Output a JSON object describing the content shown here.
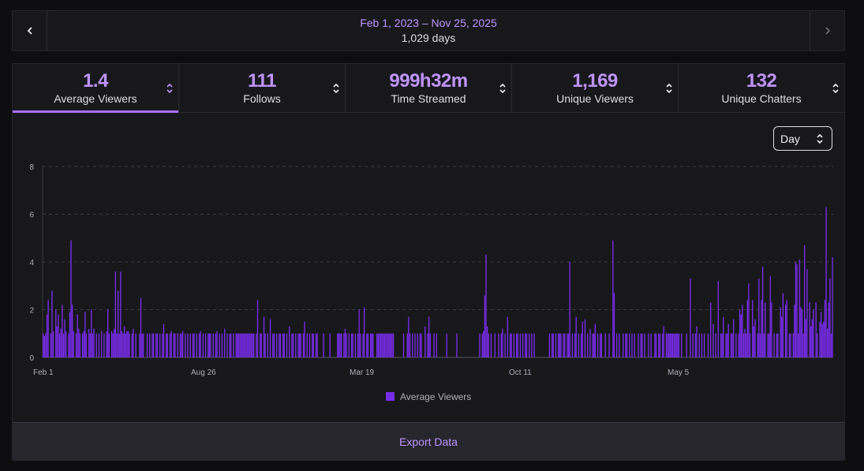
{
  "range": {
    "title": "Feb 1, 2023 – Nov 25, 2025",
    "days": "1,029 days",
    "prev_icon": "chevron-left-icon",
    "next_icon": "chevron-right-icon"
  },
  "tabs": [
    {
      "value": "1.4",
      "label": "Average Viewers",
      "active": true
    },
    {
      "value": "111",
      "label": "Follows",
      "active": false
    },
    {
      "value": "999h32m",
      "label": "Time Streamed",
      "active": false
    },
    {
      "value": "1,169",
      "label": "Unique Viewers",
      "active": false
    },
    {
      "value": "132",
      "label": "Unique Chatters",
      "active": false
    }
  ],
  "interval_select": {
    "value": "Day"
  },
  "export_label": "Export Data",
  "colors": {
    "accent": "#a970ff",
    "bar": "#772ce8",
    "text_accent": "#bf94ff"
  },
  "chart_data": {
    "type": "bar",
    "x_ticks": [
      "Feb 1",
      "Aug 26",
      "Mar 19",
      "Oct 11",
      "May 5"
    ],
    "y_ticks": [
      "0",
      "2",
      "4",
      "6",
      "8"
    ],
    "ylim": [
      0,
      8
    ],
    "grid": true,
    "legend": "bottom",
    "series": [
      {
        "name": "Average Viewers",
        "values": [
          1,
          0.9,
          1,
          1.8,
          2.4,
          0,
          1,
          2.8,
          1.1,
          0,
          2,
          1.3,
          1.8,
          1,
          1.2,
          2.2,
          1,
          1.6,
          1.1,
          0,
          1,
          1.9,
          4.9,
          2.2,
          1.1,
          0,
          1,
          1.8,
          1.2,
          1,
          0,
          1,
          1.1,
          1.9,
          1,
          0,
          1.2,
          1,
          2,
          1,
          1.2,
          0,
          1,
          0,
          1,
          0,
          1.1,
          0,
          1,
          0,
          1.1,
          2,
          1,
          0,
          1.1,
          1,
          1.2,
          3.6,
          1,
          2.8,
          1,
          3.6,
          1.1,
          1,
          1.3,
          1,
          1.1,
          1.1,
          1,
          0,
          1,
          1.2,
          0,
          1,
          0,
          0,
          1,
          2.5,
          1,
          1,
          0,
          0,
          1,
          0,
          1,
          0,
          1,
          1,
          0,
          1,
          1,
          0,
          1,
          0,
          1,
          1.4,
          0,
          1,
          1,
          0,
          1,
          1.1,
          0,
          1,
          1,
          0,
          1,
          0,
          1,
          1,
          1.1,
          0,
          1,
          0,
          1,
          0,
          1,
          0,
          1,
          1,
          0,
          1,
          0,
          1,
          1.1,
          0,
          1,
          0,
          1,
          0,
          1,
          1,
          1,
          0,
          1,
          0,
          1,
          1.1,
          0,
          1,
          0,
          1,
          0,
          1.2,
          0,
          1,
          0,
          1,
          1,
          0,
          1,
          0,
          1,
          1,
          1,
          1,
          1,
          1,
          1,
          1,
          1,
          1,
          1,
          1,
          1,
          1,
          1,
          0,
          1,
          2.4,
          0,
          1,
          1,
          0,
          1.7,
          1,
          0,
          1,
          0,
          1.6,
          0,
          1,
          1,
          0,
          1,
          0,
          1,
          1,
          0,
          1,
          1,
          0,
          1,
          0,
          1.3,
          0,
          1,
          1,
          0,
          1,
          0,
          1,
          1,
          1,
          0,
          1,
          1.5,
          0,
          1,
          0,
          1,
          0,
          1,
          1,
          0,
          1,
          1,
          0,
          0,
          0,
          0,
          1,
          0,
          0,
          0,
          0,
          1,
          0,
          0,
          0,
          0,
          0,
          1,
          1,
          1,
          1,
          0,
          1,
          1.2,
          1,
          0,
          1,
          0,
          1,
          1,
          0,
          1,
          0,
          1,
          2,
          1,
          0,
          1,
          2.1,
          0,
          1,
          1,
          0,
          1,
          1,
          1,
          0,
          0,
          1,
          1,
          1,
          1,
          1,
          1,
          1,
          1,
          1,
          1,
          1,
          1,
          1,
          1,
          0,
          0,
          0,
          0,
          0,
          0,
          0,
          1,
          0,
          0,
          1,
          1.7,
          1,
          0,
          1,
          0,
          1,
          0,
          1,
          0,
          1,
          1,
          0,
          0,
          1.3,
          0,
          1,
          1.7,
          1,
          0,
          0,
          1,
          0,
          1,
          0,
          0,
          0,
          0,
          0,
          0,
          0,
          1,
          0,
          0,
          0,
          0,
          0,
          0,
          0,
          1,
          0,
          0,
          0,
          0,
          0,
          0,
          0,
          0,
          0,
          0,
          0,
          0,
          0,
          0,
          0,
          0,
          0,
          1,
          0,
          1,
          1.1,
          2.6,
          4.3,
          1.3,
          1,
          0,
          1,
          0,
          0,
          1,
          0,
          0,
          1,
          0,
          1,
          1.2,
          0,
          1,
          0,
          1.7,
          0,
          1,
          1,
          0,
          1,
          0,
          1,
          1,
          0,
          1,
          0,
          1,
          0,
          1,
          1,
          0,
          1,
          0,
          1,
          0,
          1,
          0,
          0,
          0,
          0,
          0,
          0,
          0,
          0,
          0,
          0,
          0,
          1,
          0,
          1,
          1,
          0,
          1,
          0,
          1,
          1,
          1,
          0,
          1,
          1,
          0,
          1,
          1,
          4,
          0,
          1,
          0,
          1,
          1.7,
          0,
          1,
          0,
          1,
          1.5,
          0,
          1.6,
          0,
          1,
          0,
          1.2,
          0,
          1,
          1,
          1.4,
          0,
          1,
          0,
          1,
          1,
          0,
          0,
          1,
          0,
          0,
          1,
          0,
          0,
          4.9,
          2.7,
          0,
          1,
          0,
          1,
          0,
          0,
          1,
          0,
          1,
          1,
          0,
          1,
          0,
          1,
          0,
          1,
          0,
          0,
          1,
          0,
          1,
          1,
          0,
          1,
          0,
          0,
          1,
          0,
          1,
          0,
          0,
          1,
          1,
          0,
          1,
          1,
          0,
          1,
          1.3,
          0,
          1,
          1,
          1,
          1,
          1,
          1,
          1,
          1,
          1,
          1,
          1,
          0,
          1,
          0,
          0,
          0,
          1,
          0,
          0,
          3.3,
          0,
          1,
          0,
          1,
          1.3,
          0,
          1,
          0,
          1,
          0,
          1,
          0,
          0,
          1,
          0,
          2.3,
          0,
          1.4,
          0,
          1,
          0,
          3.2,
          0,
          1,
          1,
          1.7,
          0,
          1,
          1,
          1.4,
          0,
          1,
          1,
          1.6,
          0,
          1,
          0,
          1,
          2,
          1.8,
          2.2,
          1,
          1.2,
          1,
          2.4,
          3.1,
          1,
          0,
          2.4,
          1.3,
          1.6,
          0,
          1,
          3.3,
          1,
          2.4,
          3.8,
          1,
          2.3,
          0,
          1,
          1,
          3.4,
          2.3,
          0,
          1,
          0,
          1,
          1,
          0,
          2.1,
          1.7,
          2.7,
          0,
          2.2,
          2.4,
          0,
          1,
          1,
          0,
          1,
          2.2,
          4,
          3.9,
          1,
          4.1,
          2.1,
          2,
          1,
          4.7,
          1.6,
          3.7,
          0,
          2.3,
          1.3,
          1.6,
          2,
          0,
          2.3,
          1,
          0,
          1.5,
          1.9,
          1.4,
          1.5,
          2.4,
          6.3,
          1.2,
          2.3,
          3.3,
          1,
          4.2
        ]
      }
    ]
  }
}
